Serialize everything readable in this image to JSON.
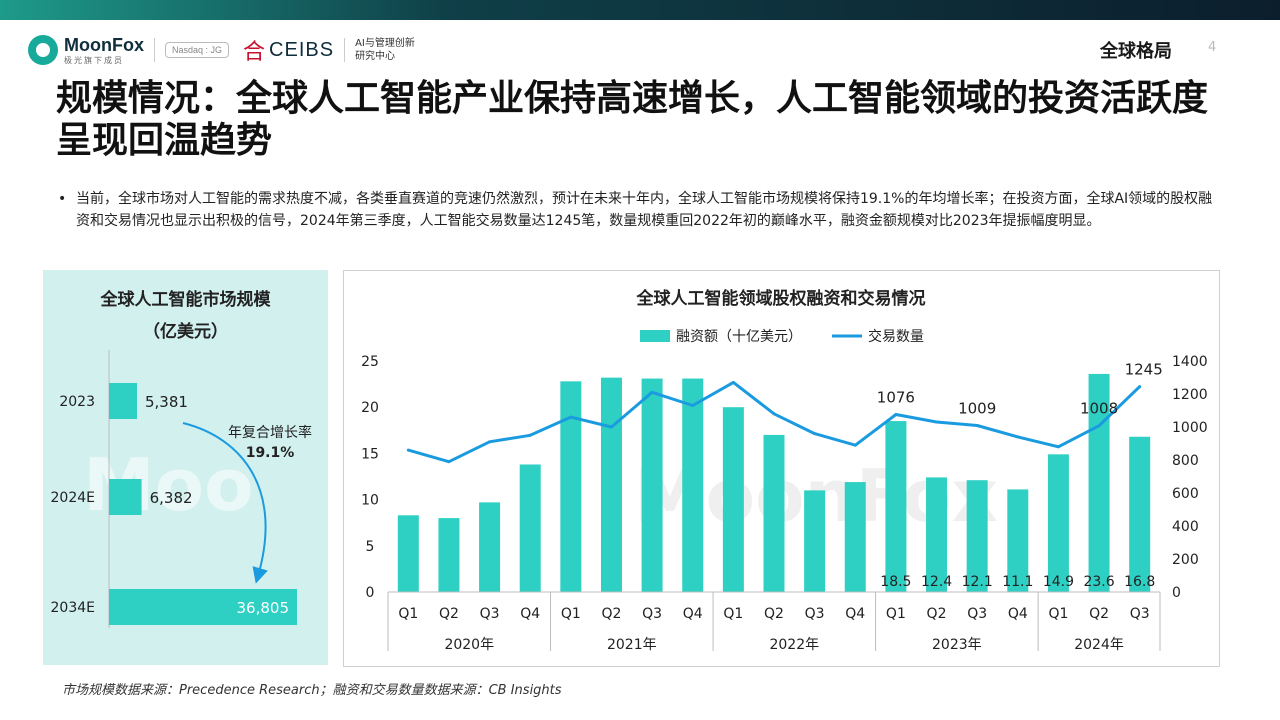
{
  "header": {
    "brand": "MoonFox",
    "brand_sub": "极光旗下成员",
    "ticker": "Nasdaq : JG",
    "partner": "CEIBS",
    "partner_sub_line1": "AI与管理创新",
    "partner_sub_line2": "研究中心",
    "section": "全球格局",
    "page_number": "4"
  },
  "title": "规模情况：全球人工智能产业保持高速增长，人工智能领域的投资活跃度呈现回温趋势",
  "bullet_text": "当前，全球市场对人工智能的需求热度不减，各类垂直赛道的竞速仍然激烈，预计在未来十年内，全球人工智能市场规模将保持19.1%的年均增长率；在投资方面，全球AI领域的股权融资和交易情况也显示出积极的信号，2024年第三季度，人工智能交易数量达1245笔，数量规模重回2022年初的巅峰水平，融资金额规模对比2023年提振幅度明显。",
  "left_chart": {
    "title_line1": "全球人工智能市场规模",
    "title_line2": "（亿美元）",
    "annotation_line1": "年复合增长率",
    "annotation_line2": "19.1%"
  },
  "right_chart": {
    "title": "全球人工智能领域股权融资和交易情况",
    "legend_bar": "融资额（十亿美元）",
    "legend_line": "交易数量"
  },
  "source_text": "市场规模数据来源：Precedence Research；融资和交易数量数据来源：CB Insights",
  "colors": {
    "bar": "#2fd0c4",
    "line": "#1a9be0",
    "panel_bg": "#d2f0ee",
    "accent_arrow": "#1a9be0"
  },
  "chart_data": [
    {
      "type": "bar",
      "orientation": "horizontal",
      "title": "全球人工智能市场规模（亿美元）",
      "categories": [
        "2023",
        "2024E",
        "2034E"
      ],
      "values": [
        5381,
        6382,
        36805
      ],
      "labels": [
        "5,381",
        "6,382",
        "36,805"
      ],
      "annotation": "年复合增长率 19.1%"
    },
    {
      "type": "bar",
      "title": "全球人工智能领域股权融资和交易情况",
      "quarters": [
        "Q1",
        "Q2",
        "Q3",
        "Q4",
        "Q1",
        "Q2",
        "Q3",
        "Q4",
        "Q1",
        "Q2",
        "Q3",
        "Q4",
        "Q1",
        "Q2",
        "Q3",
        "Q4",
        "Q1",
        "Q2",
        "Q3"
      ],
      "years": [
        {
          "label": "2020年",
          "count": 4
        },
        {
          "label": "2021年",
          "count": 4
        },
        {
          "label": "2022年",
          "count": 4
        },
        {
          "label": "2023年",
          "count": 4
        },
        {
          "label": "2024年",
          "count": 3
        }
      ],
      "series": [
        {
          "name": "融资额（十亿美元）",
          "type": "bar",
          "axis": "left",
          "values": [
            8.3,
            8.0,
            9.7,
            13.8,
            22.8,
            23.2,
            23.1,
            23.1,
            20.0,
            17.0,
            11.0,
            11.9,
            18.5,
            12.4,
            12.1,
            11.1,
            14.9,
            23.6,
            16.8
          ],
          "labels": [
            "",
            "",
            "",
            "",
            "",
            "",
            "",
            "",
            "",
            "",
            "",
            "",
            "18.5",
            "12.4",
            "12.1",
            "11.1",
            "14.9",
            "23.6",
            "16.8"
          ]
        },
        {
          "name": "交易数量",
          "type": "line",
          "axis": "right",
          "values": [
            860,
            790,
            910,
            950,
            1060,
            1000,
            1210,
            1130,
            1270,
            1080,
            960,
            890,
            1076,
            1030,
            1009,
            940,
            880,
            1008,
            1245
          ],
          "labels": [
            "",
            "",
            "",
            "",
            "",
            "",
            "",
            "",
            "",
            "",
            "",
            "",
            "1076",
            "",
            "1009",
            "",
            "",
            "1008",
            "1245"
          ]
        }
      ],
      "ylim_left": [
        0,
        25
      ],
      "ylim_right": [
        0,
        1400
      ],
      "yticks_left": [
        "0",
        "5",
        "10",
        "15",
        "20",
        "25"
      ],
      "yticks_right": [
        "0",
        "200",
        "400",
        "600",
        "800",
        "1000",
        "1200",
        "1400"
      ],
      "legend": "top-center",
      "grid": false
    }
  ]
}
